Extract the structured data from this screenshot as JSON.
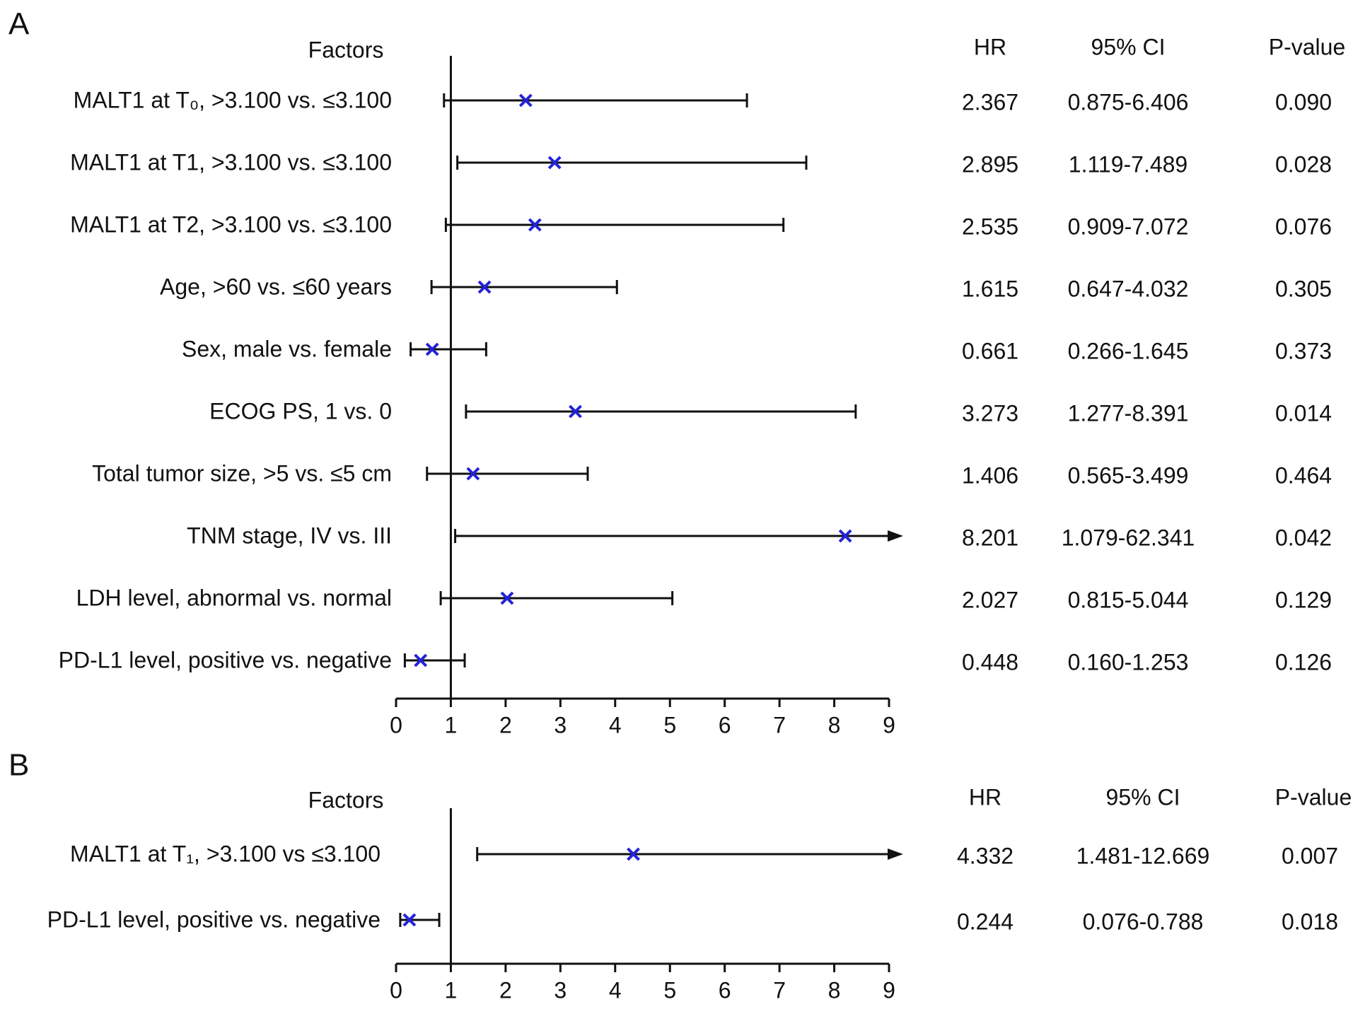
{
  "chart_data": [
    {
      "type": "forest",
      "panel": "A",
      "factor_header": "Factors",
      "hr_header": "HR",
      "ci_header": "95% CI",
      "p_header": "P-value",
      "categories": [
        "MALT1 at T₀, >3.100 vs. ≤3.100",
        "MALT1 at T1, >3.100 vs. ≤3.100",
        "MALT1 at T2, >3.100 vs. ≤3.100",
        "Age, >60 vs. ≤60 years",
        "Sex, male vs. female",
        "ECOG PS, 1 vs. 0",
        "Total tumor size, >5 vs. ≤5 cm",
        "TNM stage, IV vs. III",
        "LDH level, abnormal vs. normal",
        "PD-L1 level, positive vs. negative"
      ],
      "values": [
        2.367,
        2.895,
        2.535,
        1.615,
        0.661,
        3.273,
        1.406,
        8.201,
        2.027,
        0.448
      ],
      "lower": [
        0.875,
        1.119,
        0.909,
        0.647,
        0.266,
        1.277,
        0.565,
        1.079,
        0.815,
        0.16
      ],
      "upper": [
        6.406,
        7.489,
        7.072,
        4.032,
        1.645,
        8.391,
        3.499,
        62.341,
        5.044,
        1.253
      ],
      "ci_labels": [
        "0.875-6.406",
        "1.119-7.489",
        "0.909-7.072",
        "0.647-4.032",
        "0.266-1.645",
        "1.277-8.391",
        "0.565-3.499",
        "1.079-62.341",
        "0.815-5.044",
        "0.160-1.253"
      ],
      "p_values": [
        "0.090",
        "0.028",
        "0.076",
        "0.305",
        "0.373",
        "0.014",
        "0.464",
        "0.042",
        "0.129",
        "0.126"
      ],
      "xlim": [
        0,
        9
      ],
      "xticks": [
        0,
        1,
        2,
        3,
        4,
        5,
        6,
        7,
        8,
        9
      ],
      "reference": 1,
      "color": "#2323d8"
    },
    {
      "type": "forest",
      "panel": "B",
      "factor_header": "Factors",
      "hr_header": "HR",
      "ci_header": "95% CI",
      "p_header": "P-value",
      "categories": [
        "MALT1 at T₁, >3.100 vs ≤3.100",
        "PD-L1 level, positive vs. negative"
      ],
      "values": [
        4.332,
        0.244
      ],
      "lower": [
        1.481,
        0.076
      ],
      "upper": [
        12.669,
        0.788
      ],
      "ci_labels": [
        "1.481-12.669",
        "0.076-0.788"
      ],
      "p_values": [
        "0.007",
        "0.018"
      ],
      "xlim": [
        0,
        9
      ],
      "xticks": [
        0,
        1,
        2,
        3,
        4,
        5,
        6,
        7,
        8,
        9
      ],
      "reference": 1,
      "color": "#2323d8"
    }
  ]
}
